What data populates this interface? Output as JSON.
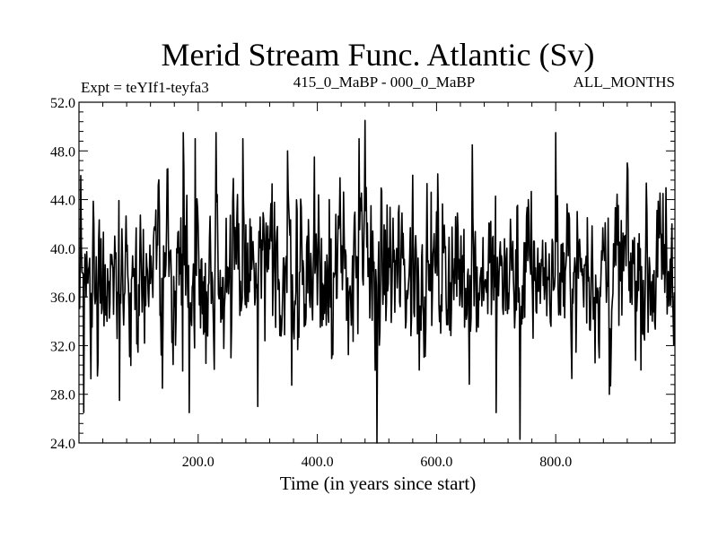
{
  "chart_data": {
    "type": "line",
    "title": "Merid Stream Func. Atlantic (Sv)",
    "subtitle_left": "Expt = teYIf1-teyfa3",
    "subtitle_center": "415_0_MaBP - 000_0_MaBP",
    "subtitle_right": "ALL_MONTHS",
    "xlabel": "Time (in years since start)",
    "ylabel": "",
    "xlim": [
      0,
      1000
    ],
    "ylim": [
      24,
      52
    ],
    "x_ticks": [
      200,
      400,
      600,
      800
    ],
    "x_tick_labels": [
      "200.0",
      "400.0",
      "600.0",
      "800.0"
    ],
    "y_ticks": [
      24,
      28,
      32,
      36,
      40,
      44,
      48,
      52
    ],
    "y_tick_labels": [
      "24.0",
      "28.0",
      "32.0",
      "36.0",
      "40.0",
      "44.0",
      "48.0",
      "52.0"
    ],
    "series": [
      {
        "name": "Merid Stream Func. Atlantic",
        "x_start": 1,
        "x_step": 1,
        "count": 999,
        "mean": 38.0,
        "anchor_points": [
          [
            1,
            35.0
          ],
          [
            5,
            38.0
          ],
          [
            8,
            26.5
          ],
          [
            12,
            36.0
          ],
          [
            25,
            42.0
          ],
          [
            60,
            41.0
          ],
          [
            68,
            27.5
          ],
          [
            100,
            37.0
          ],
          [
            140,
            28.5
          ],
          [
            148,
            46.5
          ],
          [
            175,
            49.5
          ],
          [
            185,
            26.5
          ],
          [
            195,
            49.0
          ],
          [
            205,
            39.0
          ],
          [
            230,
            49.5
          ],
          [
            255,
            31.0
          ],
          [
            275,
            49.0
          ],
          [
            300,
            27.0
          ],
          [
            330,
            33.5
          ],
          [
            350,
            48.0
          ],
          [
            370,
            38.0
          ],
          [
            395,
            47.5
          ],
          [
            420,
            44.0
          ],
          [
            440,
            38.0
          ],
          [
            470,
            49.0
          ],
          [
            480,
            50.5
          ],
          [
            482,
            45.0
          ],
          [
            500,
            24.0
          ],
          [
            520,
            40.0
          ],
          [
            560,
            46.0
          ],
          [
            580,
            36.0
          ],
          [
            600,
            43.0
          ],
          [
            620,
            38.0
          ],
          [
            640,
            37.0
          ],
          [
            660,
            48.5
          ],
          [
            700,
            26.5
          ],
          [
            730,
            36.0
          ],
          [
            740,
            24.3
          ],
          [
            770,
            40.0
          ],
          [
            800,
            49.5
          ],
          [
            830,
            38.0
          ],
          [
            860,
            39.0
          ],
          [
            890,
            28.0
          ],
          [
            920,
            47.0
          ],
          [
            950,
            36.0
          ],
          [
            980,
            44.5
          ],
          [
            995,
            42.0
          ]
        ]
      }
    ]
  }
}
